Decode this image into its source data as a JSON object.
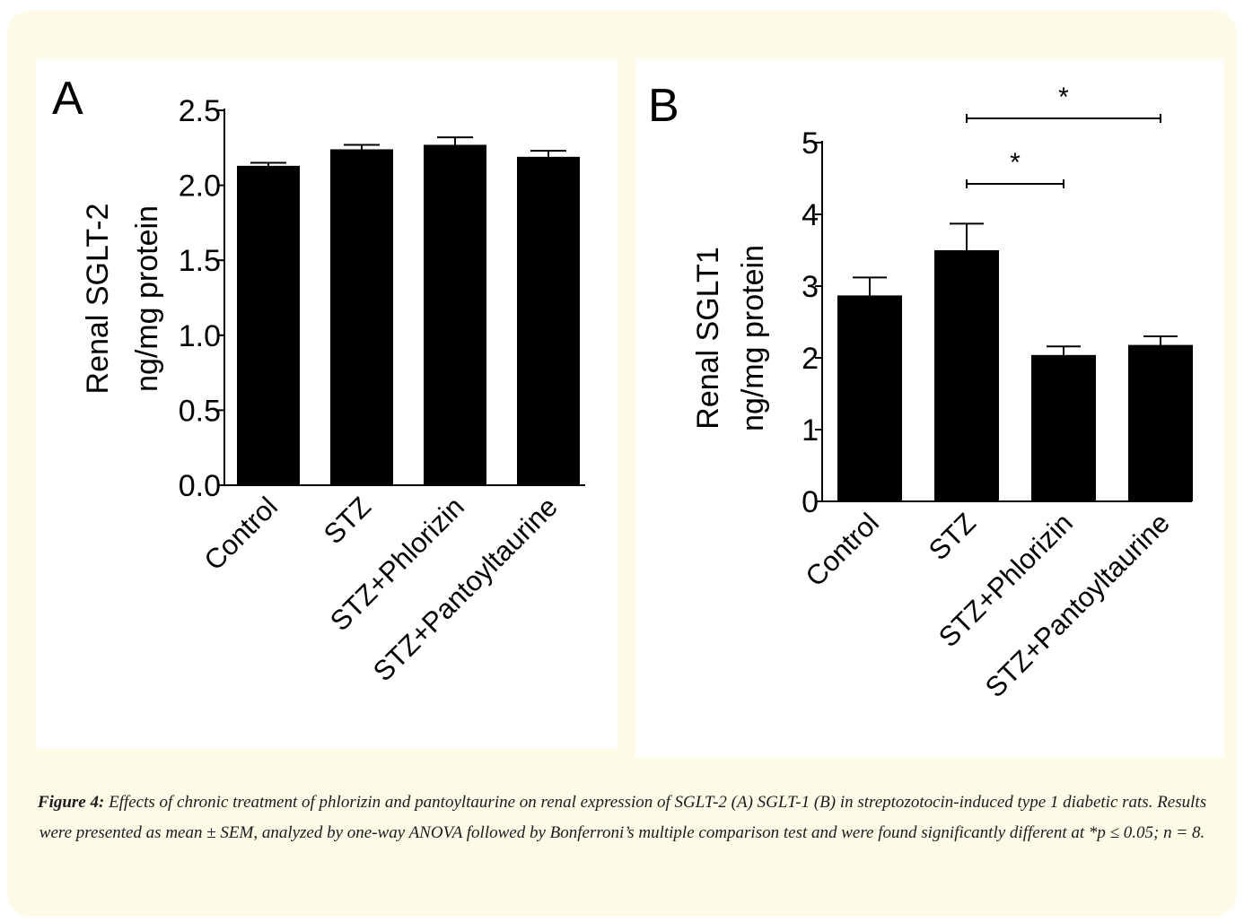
{
  "chart_data": [
    {
      "type": "bar",
      "panel_label": "A",
      "ylabel": [
        "Renal SGLT-2",
        "ng/mg protein"
      ],
      "categories": [
        "Control",
        "STZ",
        "STZ+Phlorizin",
        "STZ+Pantoyltaurine"
      ],
      "values": [
        2.13,
        2.24,
        2.27,
        2.19
      ],
      "errors": [
        0.02,
        0.03,
        0.05,
        0.04
      ],
      "ylim": [
        0,
        2.5
      ],
      "yticks": [
        "0.0",
        "0.5",
        "1.0",
        "1.5",
        "2.0",
        "2.5"
      ],
      "bar_color": "#000000",
      "grid": false,
      "significance": []
    },
    {
      "type": "bar",
      "panel_label": "B",
      "ylabel": [
        "Renal SGLT1",
        "ng/mg protein"
      ],
      "categories": [
        "Control",
        "STZ",
        "STZ+Phlorizin",
        "STZ+Pantoyltaurine"
      ],
      "values": [
        2.87,
        3.5,
        2.04,
        2.18
      ],
      "errors": [
        0.25,
        0.37,
        0.12,
        0.12
      ],
      "ylim": [
        0,
        5
      ],
      "yticks": [
        "0",
        "1",
        "2",
        "3",
        "4",
        "5"
      ],
      "bar_color": "#000000",
      "grid": false,
      "significance": [
        {
          "from": 1,
          "to": 2,
          "label": "*"
        },
        {
          "from": 1,
          "to": 3,
          "label": "*"
        }
      ]
    }
  ],
  "caption": {
    "lead": "Figure 4:",
    "text": " Effects of chronic treatment of phlorizin and pantoyltaurine on renal expression of SGLT-2 (A) SGLT-1 (B) in streptozotocin-induced type 1 diabetic rats. Results were presented as mean ± SEM, analyzed by one-way ANOVA followed by Bonferroni’s multiple comparison test and were found significantly different at *p ≤ 0.05; n = 8."
  }
}
